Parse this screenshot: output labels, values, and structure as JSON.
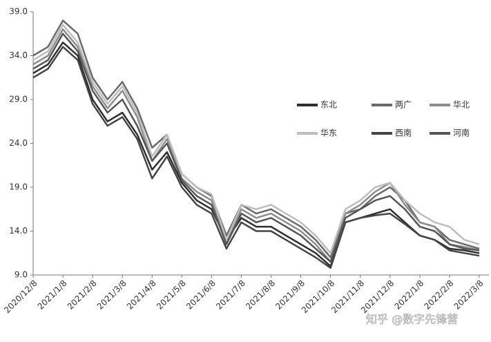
{
  "chart_data": {
    "type": "line",
    "x": [
      "2020/12/8",
      null,
      "2021/1/8",
      null,
      "2021/2/8",
      null,
      "2021/3/8",
      null,
      "2021/4/8",
      null,
      "2021/5/8",
      null,
      "2021/6/8",
      null,
      "2021/7/8",
      null,
      "2021/8/8",
      null,
      "2021/9/8",
      null,
      "2021/10/8",
      null,
      "2021/11/8",
      null,
      "2021/12/8",
      null,
      "2022/1/8",
      null,
      "2022/2/8",
      null,
      "2022/3/8"
    ],
    "series": [
      {
        "name": "东北",
        "color": "#2e2e2e",
        "values": [
          32,
          33,
          35.5,
          34,
          29,
          26.5,
          27.5,
          25,
          21,
          23,
          19.5,
          17.5,
          16.5,
          13,
          15.5,
          14.5,
          14.5,
          13.5,
          12.5,
          11.5,
          10,
          15,
          15.5,
          16,
          16.5,
          15,
          13.5,
          13,
          12,
          11.8,
          11.5
        ]
      },
      {
        "name": "两广",
        "color": "#6a6a6a",
        "values": [
          34,
          35,
          38,
          36.5,
          31.5,
          29,
          31,
          28,
          23.5,
          25,
          20.5,
          19,
          18,
          13.5,
          17,
          16,
          16.5,
          15.5,
          14.5,
          13,
          11,
          16,
          16.5,
          18,
          19,
          17.5,
          15,
          14.5,
          13,
          12.5,
          12
        ]
      },
      {
        "name": "华北",
        "color": "#8c8c8c",
        "values": [
          33,
          34,
          37,
          35,
          30.5,
          28,
          30,
          27,
          22,
          24.5,
          20,
          18.5,
          17.5,
          12.5,
          16.5,
          15.5,
          16,
          15,
          14,
          12.5,
          10.5,
          16,
          17,
          18.5,
          19.5,
          17,
          15,
          14.5,
          12.5,
          12.2,
          11.8
        ]
      },
      {
        "name": "华东",
        "color": "#bdbdbd",
        "values": [
          33.5,
          34.5,
          37.5,
          35.5,
          31,
          28.5,
          30.5,
          27.5,
          22.5,
          25,
          20.5,
          19,
          18.2,
          13,
          17,
          16.5,
          17,
          16,
          15,
          13.5,
          11.5,
          16.5,
          17.5,
          19,
          19.5,
          17.5,
          16,
          15,
          14.5,
          13,
          12.5
        ]
      },
      {
        "name": "西南",
        "color": "#444444",
        "values": [
          31.5,
          32.5,
          35,
          33.5,
          28.5,
          26,
          27,
          24.5,
          20,
          22.5,
          19,
          17,
          16,
          12,
          15,
          14,
          14,
          13,
          12,
          11,
          9.8,
          15,
          15.5,
          15.8,
          16,
          14.8,
          13.5,
          13,
          11.8,
          11.5,
          11.2
        ]
      },
      {
        "name": "河南",
        "color": "#555555",
        "values": [
          32.5,
          33.5,
          36.5,
          34.5,
          30,
          27.5,
          29,
          26,
          22,
          24,
          19.8,
          18,
          17,
          12.5,
          16,
          15,
          15.5,
          14.5,
          13.5,
          12,
          10.5,
          15.5,
          16.5,
          17.5,
          18,
          16.5,
          14.5,
          14,
          12.5,
          12,
          11.8
        ]
      }
    ],
    "ylim": [
      9,
      39
    ],
    "yticks": [
      {
        "value": 9,
        "label": "9.0"
      },
      {
        "value": 14,
        "label": "14.0"
      },
      {
        "value": 19,
        "label": "19.0"
      },
      {
        "value": 24,
        "label": "24.0"
      },
      {
        "value": 29,
        "label": "29.0"
      },
      {
        "value": 34,
        "label": "34.0"
      },
      {
        "value": 39,
        "label": "39.0"
      }
    ],
    "grid": false,
    "legend": "right",
    "watermark": "知乎 @数字先锋营"
  }
}
